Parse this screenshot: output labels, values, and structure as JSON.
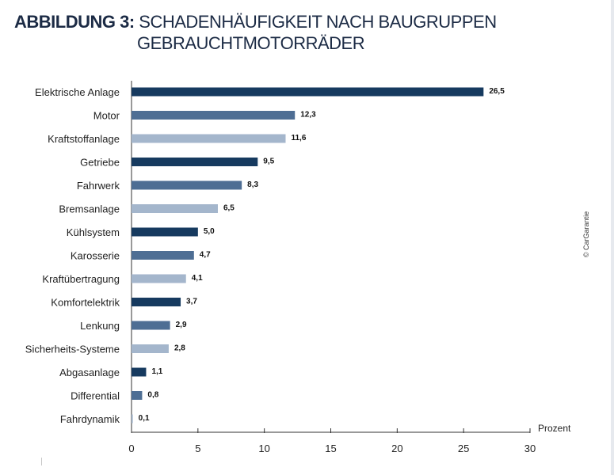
{
  "header": {
    "prefix": "ABBILDUNG 3:",
    "title_line1": "SCHADENHÄUFIGKEIT NACH BAUGRUPPEN",
    "title_line2": "GEBRAUCHTMOTORRÄDER"
  },
  "source": "© CarGarantie",
  "chart_data": {
    "type": "bar",
    "orientation": "horizontal",
    "title": "SCHADENHÄUFIGKEIT NACH BAUGRUPPEN GEBRAUCHTMOTORRÄDER",
    "xlabel": "Prozent",
    "ylabel": "",
    "xlim": [
      0,
      30
    ],
    "xticks": [
      0,
      5,
      10,
      15,
      20,
      25,
      30
    ],
    "grid": false,
    "categories": [
      "Elektrische Anlage",
      "Motor",
      "Kraftstoffanlage",
      "Getriebe",
      "Fahrwerk",
      "Bremsanlage",
      "Kühlsystem",
      "Karosserie",
      "Kraftübertragung",
      "Komfortelektrik",
      "Lenkung",
      "Sicherheits-Systeme",
      "Abgasanlage",
      "Differential",
      "Fahrdynamik"
    ],
    "values": [
      26.5,
      12.3,
      11.6,
      9.5,
      8.3,
      6.5,
      5.0,
      4.7,
      4.1,
      3.7,
      2.9,
      2.8,
      1.1,
      0.8,
      0.1
    ],
    "value_labels": [
      "26,5",
      "12,3",
      "11,6",
      "9,5",
      "8,3",
      "6,5",
      "5,0",
      "4,7",
      "4,1",
      "3,7",
      "2,9",
      "2,8",
      "1,1",
      "0,8",
      "0,1"
    ],
    "colors": [
      "#163a5f",
      "#4e6e94",
      "#a4b6cc"
    ]
  }
}
